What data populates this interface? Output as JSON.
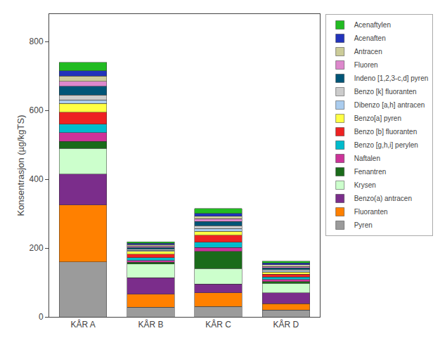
{
  "chart_data": {
    "type": "bar",
    "stacked": true,
    "categories": [
      "KÅR A",
      "KÅR B",
      "KÅR C",
      "KÅR D"
    ],
    "ylabel": "Konsentrasjon (µg/kgTS)",
    "ylim": [
      0,
      880
    ],
    "yticks": [
      0,
      200,
      400,
      600,
      800
    ],
    "grid": false,
    "legend": "upper right",
    "series": [
      {
        "name": "Pyren",
        "color": "#9B9B9B",
        "values": [
          160,
          28,
          30,
          20
        ]
      },
      {
        "name": "Fluoranten",
        "color": "#FF8000",
        "values": [
          165,
          38,
          40,
          18
        ]
      },
      {
        "name": "Benzo(a) antracen",
        "color": "#7B2D8B",
        "values": [
          90,
          48,
          25,
          32
        ]
      },
      {
        "name": "Krysen",
        "color": "#CCFFCC",
        "values": [
          75,
          40,
          45,
          28
        ]
      },
      {
        "name": "Fenantren",
        "color": "#1A6B1A",
        "values": [
          20,
          5,
          50,
          5
        ]
      },
      {
        "name": "Naftalen",
        "color": "#CC3399",
        "values": [
          25,
          5,
          12,
          6
        ]
      },
      {
        "name": "Benzo [g,h,i] perylen",
        "color": "#00BBCC",
        "values": [
          25,
          8,
          15,
          7
        ]
      },
      {
        "name": "Benzo [b] fluoranten",
        "color": "#EE2222",
        "values": [
          35,
          10,
          20,
          8
        ]
      },
      {
        "name": "Benzo[a] pyren",
        "color": "#FFFF44",
        "values": [
          25,
          8,
          12,
          6
        ]
      },
      {
        "name": "Dibenzo [a,h] antracen",
        "color": "#AACCEE",
        "values": [
          10,
          3,
          8,
          3
        ]
      },
      {
        "name": "Benzo [k] fluoranten",
        "color": "#CCCCCC",
        "values": [
          15,
          4,
          8,
          4
        ]
      },
      {
        "name": "Indeno [1,2,3-c,d] pyren",
        "color": "#005577",
        "values": [
          25,
          5,
          12,
          5
        ]
      },
      {
        "name": "Fluoren",
        "color": "#DD88CC",
        "values": [
          15,
          4,
          8,
          5
        ]
      },
      {
        "name": "Antracen",
        "color": "#CCCC99",
        "values": [
          15,
          4,
          8,
          5
        ]
      },
      {
        "name": "Acenaften",
        "color": "#2233BB",
        "values": [
          15,
          4,
          8,
          5
        ]
      },
      {
        "name": "Acenaftylen",
        "color": "#22BB22",
        "values": [
          25,
          4,
          14,
          5
        ]
      }
    ]
  }
}
